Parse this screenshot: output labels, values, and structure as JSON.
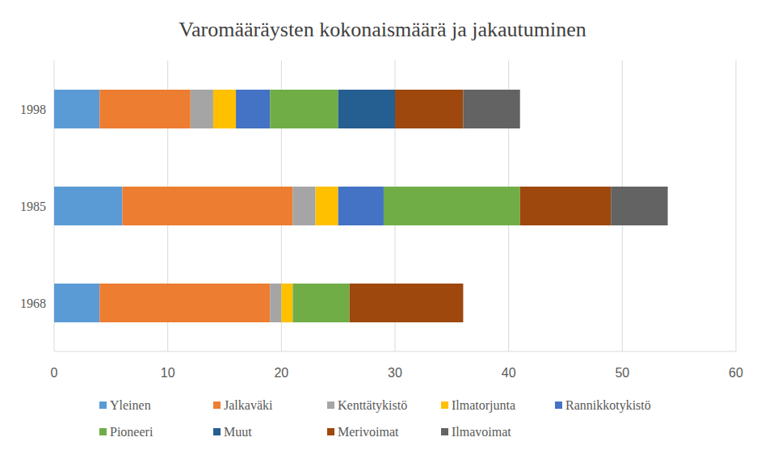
{
  "chart_data": {
    "type": "bar",
    "title": "Varomääräysten kokonaismäärä ja jakautuminen",
    "orientation": "horizontal",
    "stacked": true,
    "grid": true,
    "legend": "bottom",
    "categories": [
      "1968",
      "1985",
      "1998"
    ],
    "xlim": [
      0,
      60
    ],
    "xticks": [
      0,
      10,
      20,
      30,
      40,
      50,
      60
    ],
    "series": [
      {
        "name": "Yleinen",
        "color": "#5b9bd5",
        "values": [
          4,
          6,
          4
        ]
      },
      {
        "name": "Jalkaväki",
        "color": "#ed7d31",
        "values": [
          15,
          15,
          8
        ]
      },
      {
        "name": "Kenttätykistö",
        "color": "#a5a5a5",
        "values": [
          1,
          2,
          2
        ]
      },
      {
        "name": "Ilmatorjunta",
        "color": "#ffc000",
        "values": [
          1,
          2,
          2
        ]
      },
      {
        "name": "Rannikkotykistö",
        "color": "#4472c4",
        "values": [
          0,
          4,
          3
        ]
      },
      {
        "name": "Pioneeri",
        "color": "#70ad47",
        "values": [
          5,
          12,
          6
        ]
      },
      {
        "name": "Muut",
        "color": "#255e91",
        "values": [
          0,
          0,
          5
        ]
      },
      {
        "name": "Merivoimat",
        "color": "#9e480e",
        "values": [
          10,
          8,
          6
        ]
      },
      {
        "name": "Ilmavoimat",
        "color": "#636363",
        "values": [
          0,
          5,
          5
        ]
      }
    ]
  }
}
